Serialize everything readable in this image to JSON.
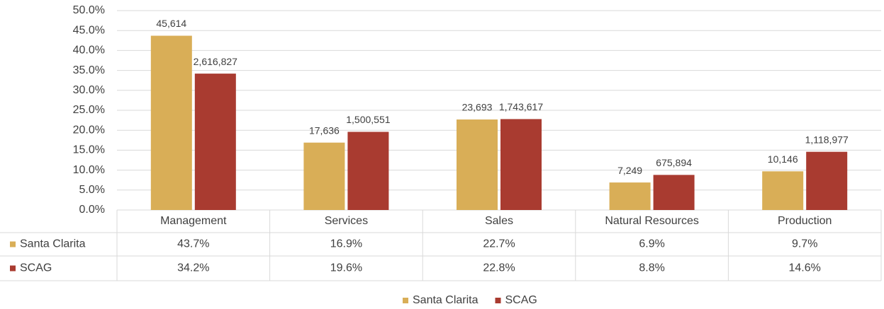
{
  "chart_data": {
    "type": "bar",
    "categories": [
      "Management",
      "Services",
      "Sales",
      "Natural Resources",
      "Production"
    ],
    "series": [
      {
        "name": "Santa Clarita",
        "color": "#d9ae57",
        "values": [
          43.7,
          16.9,
          22.7,
          6.9,
          9.7
        ],
        "value_labels": [
          "43.7%",
          "16.9%",
          "22.7%",
          "6.9%",
          "9.7%"
        ],
        "data_labels": [
          "45,614",
          "17,636",
          "23,693",
          "7,249",
          "10,146"
        ]
      },
      {
        "name": "SCAG",
        "color": "#a93b30",
        "values": [
          34.2,
          19.6,
          22.8,
          8.8,
          14.6
        ],
        "value_labels": [
          "34.2%",
          "19.6%",
          "22.8%",
          "8.8%",
          "14.6%"
        ],
        "data_labels": [
          "2,616,827",
          "1,500,551",
          "1,743,617",
          "675,894",
          "1,118,977"
        ]
      }
    ],
    "ylim": [
      0,
      50
    ],
    "yticks": [
      {
        "value": 0,
        "label": "0.0%"
      },
      {
        "value": 5,
        "label": "5.0%"
      },
      {
        "value": 10,
        "label": "10.0%"
      },
      {
        "value": 15,
        "label": "15.0%"
      },
      {
        "value": 20,
        "label": "20.0%"
      },
      {
        "value": 25,
        "label": "25.0%"
      },
      {
        "value": 30,
        "label": "30.0%"
      },
      {
        "value": 35,
        "label": "35.0%"
      },
      {
        "value": 40,
        "label": "40.0%"
      },
      {
        "value": 45,
        "label": "45.0%"
      },
      {
        "value": 50,
        "label": "50.0%"
      }
    ],
    "grid": true,
    "legend": "bottom",
    "data_table": true
  }
}
